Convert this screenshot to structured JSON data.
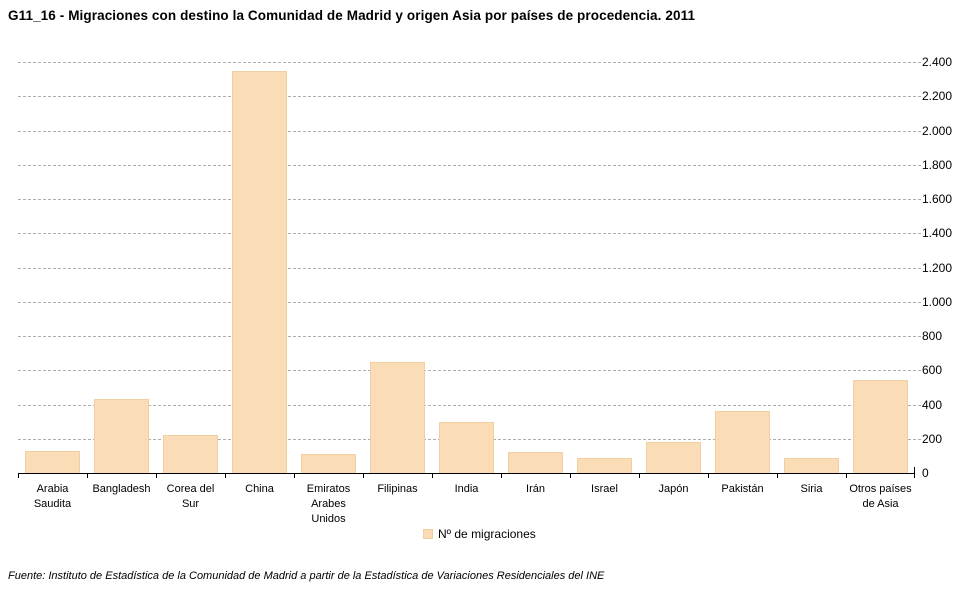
{
  "title": "G11_16 - Migraciones con destino la Comunidad de Madrid y origen Asia por países de procedencia. 2011",
  "source_note": "Fuente: Instituto de Estadística de la Comunidad de Madrid a partir de la Estadística de Variaciones Residenciales del INE",
  "legend": {
    "label": "Nº de migraciones"
  },
  "colors": {
    "bar_fill": "#FADCB6",
    "bar_border": "#F2CFA0",
    "gridline": "#ADADAD",
    "axis": "#000000",
    "background": "#FFFFFF"
  },
  "chart_data": {
    "type": "bar",
    "title": "G11_16 - Migraciones con destino la Comunidad de Madrid y origen Asia por países de procedencia. 2011",
    "categories": [
      "Arabia Saudita",
      "Bangladesh",
      "Corea del Sur",
      "China",
      "Emiratos Arabes Unidos",
      "Filipinas",
      "India",
      "Irán",
      "Israel",
      "Japón",
      "Pakistán",
      "Siria",
      "Otros países de Asia"
    ],
    "category_label_lines": [
      "Arabia\nSaudita",
      "Bangladesh",
      "Corea del\nSur",
      "China",
      "Emiratos\nArabes\nUnidos",
      "Filipinas",
      "India",
      "Irán",
      "Israel",
      "Japón",
      "Pakistán",
      "Siria",
      "Otros países\nde Asia"
    ],
    "series": [
      {
        "name": "Nº de migraciones",
        "values": [
          130,
          430,
          220,
          2345,
          110,
          650,
          300,
          120,
          90,
          180,
          360,
          85,
          545
        ]
      }
    ],
    "xlabel": "",
    "ylabel": "",
    "ylim": [
      0,
      2400
    ],
    "ytick_step": 200,
    "ytick_labels": [
      "0",
      "200",
      "400",
      "600",
      "800",
      "1.000",
      "1.200",
      "1.400",
      "1.600",
      "1.800",
      "2.000",
      "2.200",
      "2.400"
    ],
    "y_axis_side": "right",
    "grid": "horizontal-dashed",
    "legend_entries": [
      "Nº de migraciones"
    ],
    "legend_position": "bottom-center"
  }
}
